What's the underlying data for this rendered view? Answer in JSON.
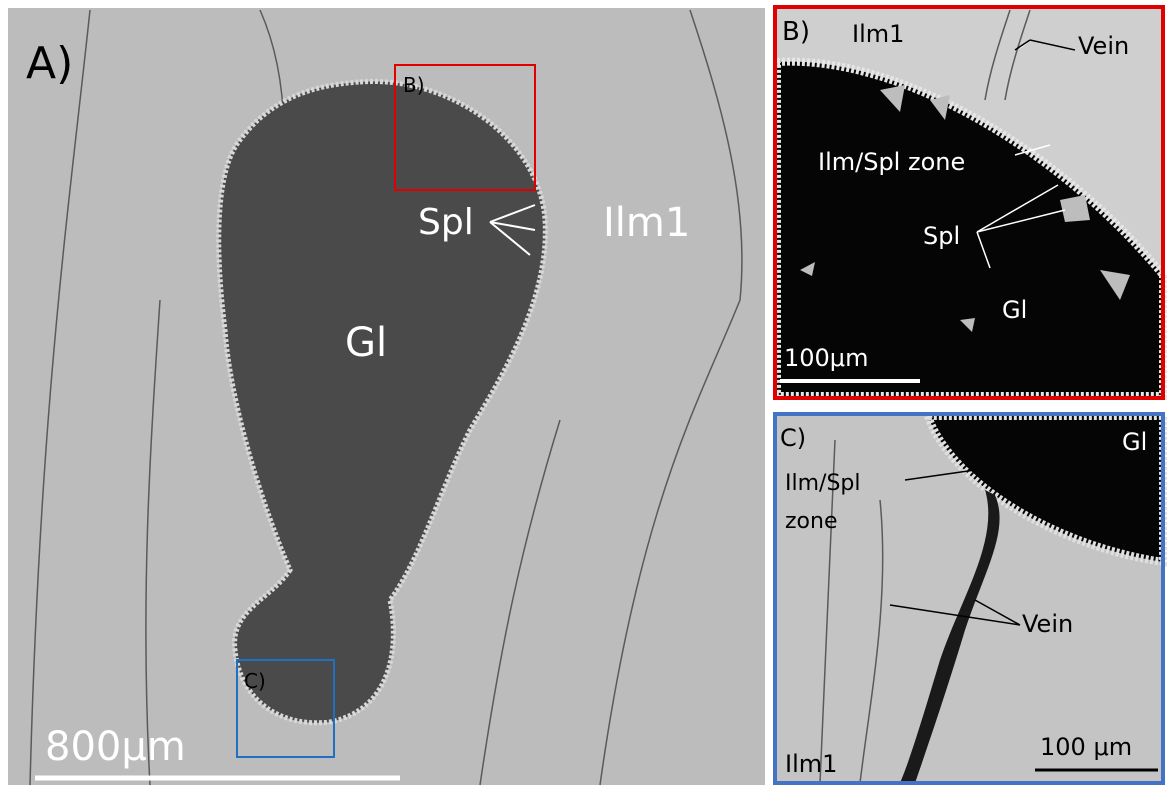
{
  "panels": [
    {
      "label": "A)",
      "inset_labels": [
        "B)",
        "C)"
      ],
      "annotations": [
        "Spl",
        "Ilm1",
        "Gl"
      ],
      "scale_bar": "800μm"
    },
    {
      "label": "B)",
      "annotations": [
        "Ilm1",
        "Vein",
        "Ilm/Spl zone",
        "Spl",
        "Gl"
      ],
      "scale_bar": "100μm"
    },
    {
      "label": "C)",
      "annotations": [
        "Gl",
        "Ilm/Spl",
        "zone",
        "Vein",
        "Ilm1"
      ],
      "scale_bar": "100 μm"
    }
  ]
}
